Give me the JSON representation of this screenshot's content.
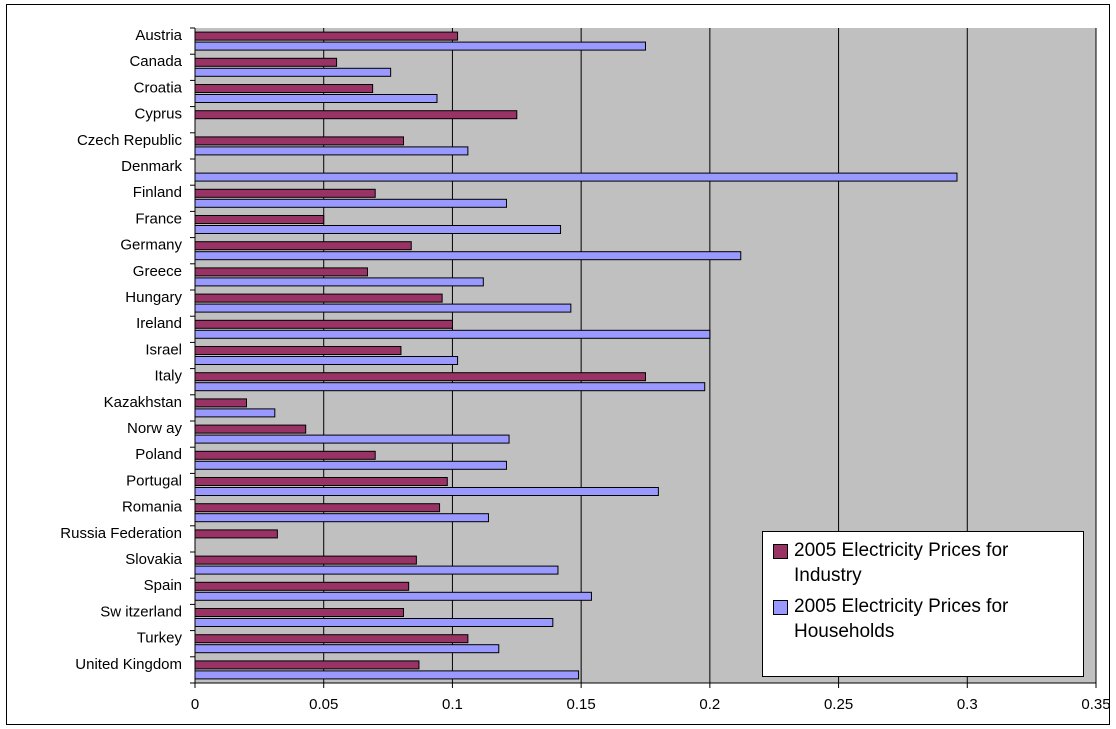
{
  "chart_data": {
    "type": "bar",
    "orientation": "horizontal",
    "categories": [
      "Austria",
      "Canada",
      "Croatia",
      "Cyprus",
      "Czech Republic",
      "Denmark",
      "Finland",
      "France",
      "Germany",
      "Greece",
      "Hungary",
      "Ireland",
      "Israel",
      "Italy",
      "Kazakhstan",
      "Norw ay",
      "Poland",
      "Portugal",
      "Romania",
      "Russia Federation",
      "Slovakia",
      "Spain",
      "Sw itzerland",
      "Turkey",
      "United Kingdom"
    ],
    "series": [
      {
        "name": "2005 Electricity Prices for Industry",
        "color": "#993366",
        "values": [
          0.102,
          0.055,
          0.069,
          0.125,
          0.081,
          null,
          0.07,
          0.05,
          0.084,
          0.067,
          0.096,
          0.1,
          0.08,
          0.175,
          0.02,
          0.043,
          0.07,
          0.098,
          0.095,
          0.032,
          0.086,
          0.083,
          0.081,
          0.106,
          0.087
        ]
      },
      {
        "name": "2005 Electricity Prices for Households",
        "color": "#9999ff",
        "values": [
          0.175,
          0.076,
          0.094,
          null,
          0.106,
          0.296,
          0.121,
          0.142,
          0.212,
          0.112,
          0.146,
          0.2,
          0.102,
          0.198,
          0.031,
          0.122,
          0.121,
          0.18,
          0.114,
          null,
          0.141,
          0.154,
          0.139,
          0.118,
          0.149
        ]
      }
    ],
    "xlim": [
      0,
      0.35
    ],
    "xticks": [
      "0",
      "0.05",
      "0.1",
      "0.15",
      "0.2",
      "0.25",
      "0.3",
      "0.35"
    ],
    "grid": true,
    "plot_background": "#c0c0c0",
    "legend_position": "bottom-right",
    "title": "",
    "xlabel": "",
    "ylabel": ""
  }
}
